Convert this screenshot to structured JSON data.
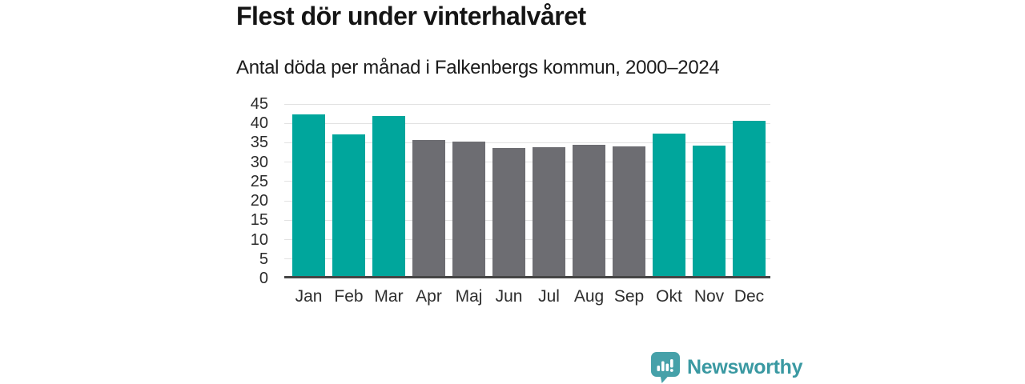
{
  "header": {
    "title": "Flest dör under vinterhalvåret",
    "subtitle": "Antal döda per månad i Falkenbergs kommun, 2000–2024"
  },
  "chart_data": {
    "type": "bar",
    "title": "Flest dör under vinterhalvåret",
    "subtitle": "Antal döda per månad i Falkenbergs kommun, 2000–2024",
    "categories": [
      "Jan",
      "Feb",
      "Mar",
      "Apr",
      "Maj",
      "Jun",
      "Jul",
      "Aug",
      "Sep",
      "Okt",
      "Nov",
      "Dec"
    ],
    "values": [
      41.8,
      36.6,
      41.2,
      35.2,
      34.7,
      33.0,
      33.2,
      33.8,
      33.4,
      36.8,
      33.6,
      40.0
    ],
    "highlighted": [
      true,
      true,
      true,
      false,
      false,
      false,
      false,
      false,
      false,
      true,
      true,
      true
    ],
    "xlabel": "",
    "ylabel": "",
    "ylim": [
      0,
      45
    ],
    "yticks": [
      0,
      5,
      10,
      15,
      20,
      25,
      30,
      35,
      40,
      45
    ],
    "grid": true,
    "legend": false,
    "colors": {
      "highlight": "#00a69c",
      "muted": "#6d6d72",
      "gridline": "#e2e2e2",
      "axis": "#454545"
    }
  },
  "footer": {
    "brand": "Newsworthy",
    "brand_color": "#3a99a2",
    "logo_color": "#46a1a9",
    "logo_icon": "bar-chart-speech-bubble-icon"
  }
}
